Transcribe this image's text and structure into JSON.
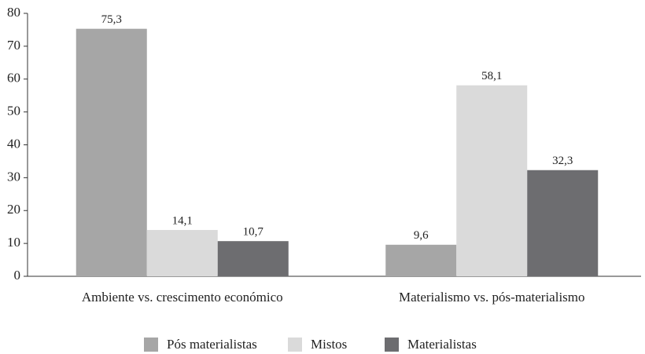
{
  "chart_data": {
    "type": "bar",
    "categories": [
      "Ambiente vs. crescimento económico",
      "Materialismo vs. pós-materialismo"
    ],
    "series": [
      {
        "name": "Pós materialistas",
        "color": "#a6a6a6",
        "values": [
          75.3,
          9.6
        ],
        "value_labels": [
          "75,3",
          "9,6"
        ]
      },
      {
        "name": "Mistos",
        "color": "#dadada",
        "values": [
          14.1,
          58.1
        ],
        "value_labels": [
          "14,1",
          "58,1"
        ]
      },
      {
        "name": "Materialistas",
        "color": "#6d6d70",
        "values": [
          10.7,
          32.3
        ],
        "value_labels": [
          "10,7",
          "32,3"
        ]
      }
    ],
    "ylim": [
      0,
      80
    ],
    "yticks": [
      0,
      10,
      20,
      30,
      40,
      50,
      60,
      70,
      80
    ],
    "grid": false,
    "legend": "bottom"
  }
}
